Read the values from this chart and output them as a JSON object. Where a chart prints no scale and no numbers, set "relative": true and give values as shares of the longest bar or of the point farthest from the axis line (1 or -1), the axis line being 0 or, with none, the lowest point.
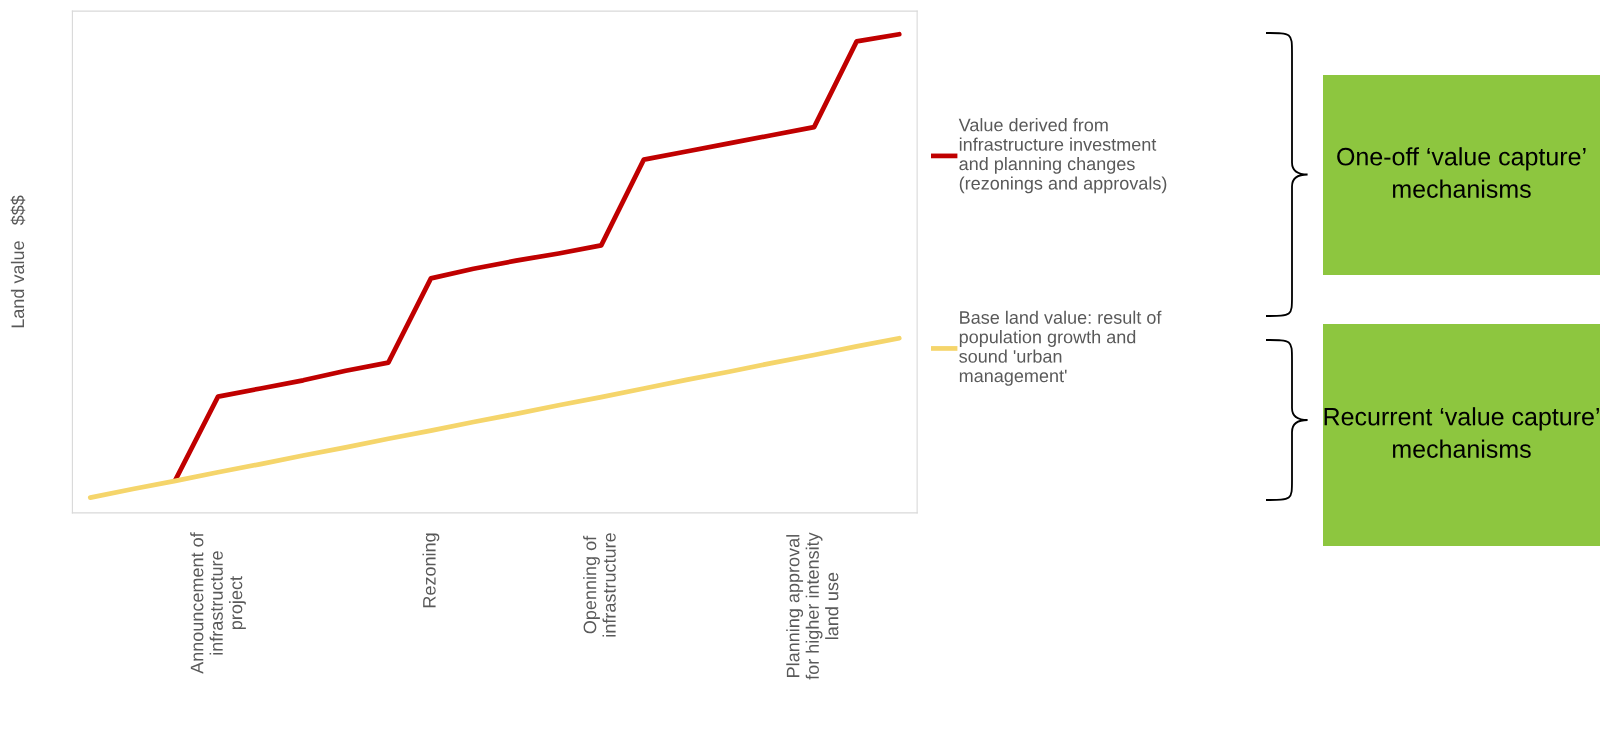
{
  "chart_data": {
    "type": "line",
    "relative": true,
    "ylabel": "Land value   $$$",
    "categories": [
      null,
      null,
      null,
      "Announcement of\ninfrastructure\nproject",
      null,
      null,
      null,
      null,
      "Rezoning",
      null,
      null,
      null,
      "Openning of\ninfrastructure",
      null,
      null,
      null,
      null,
      "Planning approval\nfor higher intensity\nland use",
      null,
      null
    ],
    "series": [
      {
        "name": "Value derived from\ninfrastructure investment\nand planning changes\n(rezonings and approvals)",
        "color": "#c00000",
        "values": [
          null,
          null,
          0.069,
          0.243,
          0.26,
          0.277,
          0.297,
          0.314,
          0.49,
          0.51,
          0.527,
          0.542,
          0.559,
          0.738,
          0.755,
          0.772,
          0.789,
          0.806,
          0.985,
          1.0
        ]
      },
      {
        "name": "Base land value: result of\npopulation growth and\nsound 'urban\nmanagement'",
        "color": "#f5d56b",
        "values": [
          0.032,
          0.05,
          0.067,
          0.085,
          0.102,
          0.12,
          0.137,
          0.155,
          0.172,
          0.19,
          0.207,
          0.225,
          0.242,
          0.26,
          0.278,
          0.295,
          0.313,
          0.33,
          0.348,
          0.365
        ]
      }
    ],
    "legend": "right",
    "marker": "none",
    "line_style": "solid",
    "annotations": [
      "One-off ‘value capture’ mechanisms",
      "Recurrent ‘value capture’ mechanisms"
    ]
  }
}
